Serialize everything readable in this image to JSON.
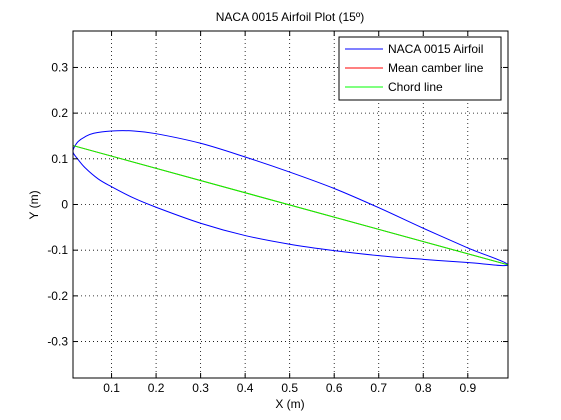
{
  "chart_data": {
    "type": "line",
    "title": "NACA 0015 Airfoil Plot (15º)",
    "xlabel": "X (m)",
    "ylabel": "Y (m)",
    "xlim": [
      0.0134,
      0.9903
    ],
    "ylim": [
      -0.3798,
      0.3798
    ],
    "xticks": [
      0.1,
      0.2,
      0.3,
      0.4,
      0.5,
      0.6,
      0.7,
      0.8,
      0.9
    ],
    "xtick_labels": [
      "0.1",
      "0.2",
      "0.3",
      "0.4",
      "0.5",
      "0.6",
      "0.7",
      "0.8",
      "0.9"
    ],
    "yticks": [
      0.3,
      0.2,
      0.1,
      0,
      -0.1,
      -0.2,
      -0.3
    ],
    "ytick_labels": [
      "0.3",
      "0.2",
      "0.1",
      "0",
      "-0.1",
      "-0.2",
      "-0.3"
    ],
    "grid": true,
    "legend_position": "top-right",
    "series": [
      {
        "name": "NACA 0015 Airfoil",
        "color": "#0000ff",
        "curve": "closed",
        "x": [
          0.9903,
          0.9,
          0.8,
          0.7,
          0.6,
          0.5,
          0.4,
          0.3,
          0.2,
          0.15,
          0.1,
          0.06,
          0.04,
          0.025,
          0.017,
          0.0134,
          0.015,
          0.022,
          0.04,
          0.07,
          0.1,
          0.15,
          0.2,
          0.3,
          0.4,
          0.5,
          0.6,
          0.7,
          0.8,
          0.9,
          0.9903
        ],
        "y": [
          -0.132,
          -0.095,
          -0.052,
          -0.007,
          0.035,
          0.071,
          0.104,
          0.134,
          0.155,
          0.161,
          0.161,
          0.156,
          0.148,
          0.138,
          0.127,
          0.118,
          0.111,
          0.102,
          0.081,
          0.056,
          0.039,
          0.014,
          -0.006,
          -0.041,
          -0.068,
          -0.087,
          -0.101,
          -0.112,
          -0.12,
          -0.127,
          -0.132
        ]
      },
      {
        "name": "Mean camber line",
        "color": "#ff0000",
        "curve": "open",
        "x": [
          0.0134,
          0.9903
        ],
        "y": [
          0.129,
          -0.132
        ]
      },
      {
        "name": "Chord line",
        "color": "#00ff00",
        "curve": "open",
        "x": [
          0.0134,
          0.9903
        ],
        "y": [
          0.129,
          -0.132
        ]
      }
    ]
  }
}
